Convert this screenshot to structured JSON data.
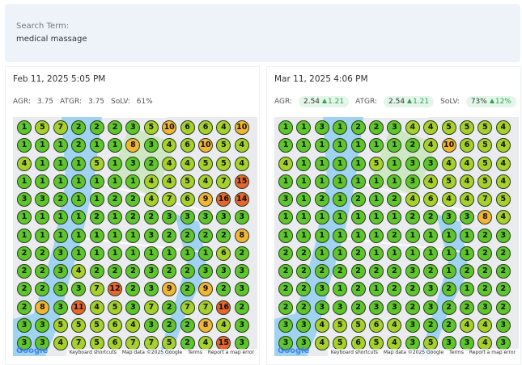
{
  "search": {
    "label": "Search Term:",
    "term": "medical massage"
  },
  "panels": [
    {
      "date": "Feb 11, 2025 5:05 PM",
      "metrics": [
        {
          "label": "AGR:",
          "value": "3.75"
        },
        {
          "label": "ATGR:",
          "value": "3.75"
        },
        {
          "label": "SoLV:",
          "value": "61%"
        }
      ],
      "grid": [
        [
          1,
          5,
          7,
          2,
          2,
          2,
          3,
          5,
          10,
          6,
          6,
          4,
          10
        ],
        [
          1,
          1,
          1,
          2,
          1,
          1,
          8,
          3,
          4,
          6,
          10,
          5,
          4
        ],
        [
          4,
          1,
          1,
          1,
          5,
          1,
          3,
          2,
          4,
          4,
          5,
          5,
          4
        ],
        [
          1,
          1,
          1,
          1,
          1,
          1,
          1,
          4,
          4,
          5,
          4,
          7,
          15
        ],
        [
          3,
          3,
          2,
          1,
          1,
          2,
          2,
          4,
          7,
          6,
          9,
          16,
          14
        ],
        [
          1,
          1,
          1,
          1,
          2,
          1,
          2,
          2,
          3,
          3,
          3,
          3,
          3
        ],
        [
          1,
          1,
          1,
          1,
          1,
          1,
          1,
          3,
          2,
          2,
          2,
          2,
          8
        ],
        [
          2,
          2,
          3,
          1,
          1,
          1,
          1,
          1,
          1,
          1,
          1,
          6,
          2
        ],
        [
          2,
          2,
          3,
          4,
          2,
          2,
          2,
          3,
          2,
          2,
          3,
          3,
          3
        ],
        [
          2,
          2,
          3,
          3,
          7,
          12,
          2,
          3,
          9,
          2,
          9,
          2,
          3
        ],
        [
          2,
          8,
          3,
          11,
          4,
          5,
          3,
          7,
          2,
          7,
          7,
          16,
          2
        ],
        [
          3,
          3,
          5,
          5,
          5,
          6,
          4,
          3,
          2,
          2,
          8,
          4,
          3
        ],
        [
          3,
          3,
          4,
          7,
          5,
          6,
          7,
          7,
          5,
          2,
          4,
          15,
          3
        ]
      ],
      "attribution": [
        "Keyboard shortcuts",
        "Map data ©2025 Google",
        "Terms",
        "Report a map error"
      ]
    },
    {
      "date": "Mar 11, 2025 4:06 PM",
      "metrics": [
        {
          "label": "AGR:",
          "value": "2.54",
          "change": "1.21"
        },
        {
          "label": "ATGR:",
          "value": "2.54",
          "change": "1.21"
        },
        {
          "label": "SoLV:",
          "value": "73%",
          "change": "12%"
        }
      ],
      "grid": [
        [
          1,
          1,
          3,
          1,
          2,
          2,
          3,
          4,
          4,
          5,
          5,
          5,
          4
        ],
        [
          1,
          1,
          1,
          1,
          1,
          1,
          1,
          2,
          4,
          10,
          6,
          5,
          4
        ],
        [
          4,
          1,
          1,
          1,
          1,
          5,
          1,
          3,
          3,
          4,
          4,
          5,
          4
        ],
        [
          1,
          1,
          1,
          1,
          1,
          1,
          1,
          3,
          4,
          5,
          4,
          5,
          4
        ],
        [
          3,
          1,
          2,
          1,
          2,
          1,
          2,
          4,
          6,
          4,
          4,
          7,
          5
        ],
        [
          1,
          1,
          1,
          1,
          1,
          1,
          1,
          2,
          2,
          3,
          3,
          8,
          4
        ],
        [
          1,
          1,
          1,
          1,
          1,
          1,
          2,
          1,
          1,
          1,
          1,
          2,
          3
        ],
        [
          2,
          2,
          1,
          1,
          2,
          1,
          1,
          1,
          1,
          1,
          1,
          2,
          2
        ],
        [
          2,
          2,
          2,
          2,
          2,
          2,
          2,
          3,
          2,
          1,
          2,
          2,
          2
        ],
        [
          2,
          2,
          3,
          1,
          2,
          1,
          2,
          2,
          3,
          2,
          1,
          2,
          2
        ],
        [
          2,
          2,
          3,
          3,
          2,
          3,
          3,
          2,
          3,
          2,
          2,
          3,
          2
        ],
        [
          3,
          3,
          4,
          5,
          5,
          6,
          4,
          3,
          2,
          2,
          4,
          4,
          3
        ],
        [
          3,
          3,
          4,
          5,
          6,
          5,
          4,
          3,
          5,
          3,
          3,
          4,
          3
        ]
      ],
      "attribution": [
        "Keyboard shortcuts",
        "Map data ©2025 Google",
        "Terms",
        "Report a map error"
      ]
    }
  ]
}
